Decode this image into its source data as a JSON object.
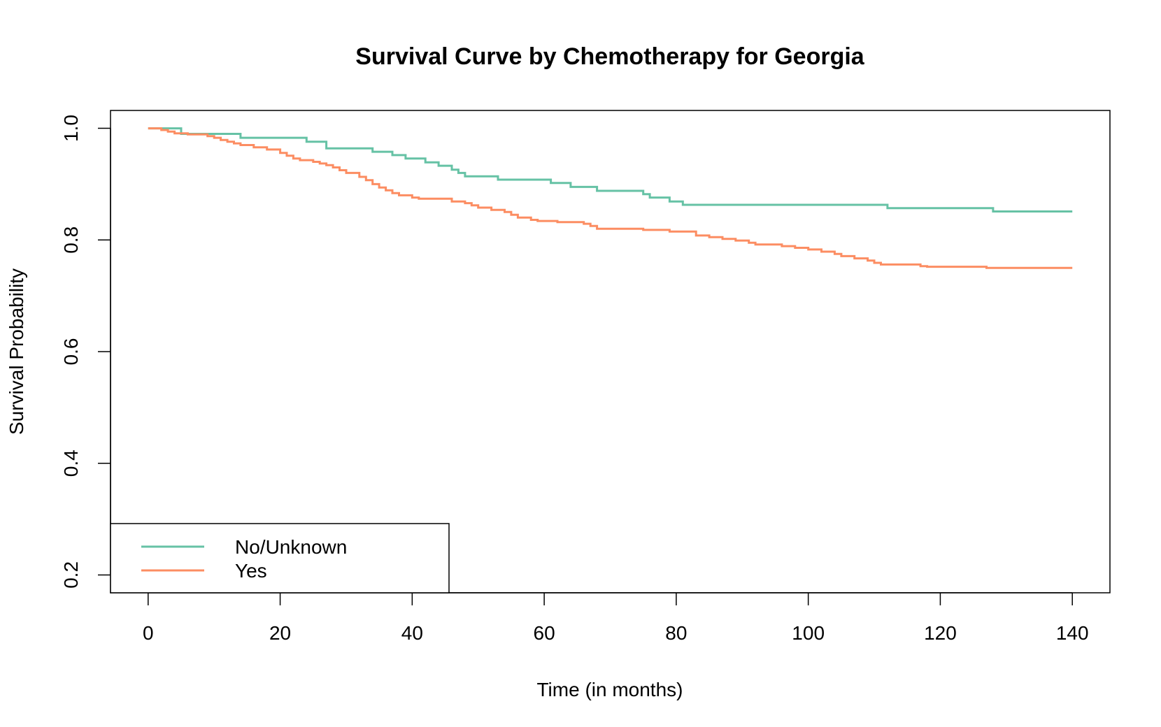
{
  "chart_data": {
    "type": "line",
    "step": true,
    "title": "Survival Curve by Chemotherapy for Georgia",
    "xlabel": "Time (in months)",
    "ylabel": "Survival Probability",
    "xlim": [
      -5.7,
      145.7
    ],
    "ylim": [
      0.168,
      1.032
    ],
    "xticks": [
      0,
      20,
      40,
      60,
      80,
      100,
      120,
      140
    ],
    "yticks": [
      0.2,
      0.4,
      0.6,
      0.8,
      1.0
    ],
    "xtick_labels": [
      "0",
      "20",
      "40",
      "60",
      "80",
      "100",
      "120",
      "140"
    ],
    "ytick_labels": [
      "0.2",
      "0.4",
      "0.6",
      "0.8",
      "1.0"
    ],
    "grid": false,
    "legend": {
      "position": "bottom-left",
      "entries": [
        "No/Unknown",
        "Yes"
      ]
    },
    "series": [
      {
        "name": "No/Unknown",
        "color": "#66c2a5",
        "points": [
          [
            0,
            1.0
          ],
          [
            5,
            0.99
          ],
          [
            14,
            0.983
          ],
          [
            24,
            0.976
          ],
          [
            27,
            0.964
          ],
          [
            34,
            0.958
          ],
          [
            37,
            0.952
          ],
          [
            39,
            0.946
          ],
          [
            42,
            0.939
          ],
          [
            44,
            0.933
          ],
          [
            46,
            0.926
          ],
          [
            47,
            0.92
          ],
          [
            48,
            0.914
          ],
          [
            53,
            0.908
          ],
          [
            61,
            0.902
          ],
          [
            64,
            0.895
          ],
          [
            68,
            0.888
          ],
          [
            75,
            0.882
          ],
          [
            76,
            0.876
          ],
          [
            79,
            0.869
          ],
          [
            81,
            0.863
          ],
          [
            112,
            0.857
          ],
          [
            128,
            0.851
          ],
          [
            140,
            0.851
          ]
        ]
      },
      {
        "name": "Yes",
        "color": "#fc8d62",
        "points": [
          [
            0,
            1.0
          ],
          [
            2,
            0.997
          ],
          [
            3,
            0.994
          ],
          [
            4,
            0.991
          ],
          [
            6,
            0.989
          ],
          [
            9,
            0.986
          ],
          [
            10,
            0.983
          ],
          [
            11,
            0.979
          ],
          [
            12,
            0.976
          ],
          [
            13,
            0.973
          ],
          [
            14,
            0.97
          ],
          [
            16,
            0.966
          ],
          [
            18,
            0.962
          ],
          [
            20,
            0.956
          ],
          [
            21,
            0.951
          ],
          [
            22,
            0.946
          ],
          [
            23,
            0.943
          ],
          [
            25,
            0.94
          ],
          [
            26,
            0.937
          ],
          [
            27,
            0.934
          ],
          [
            28,
            0.93
          ],
          [
            29,
            0.925
          ],
          [
            30,
            0.92
          ],
          [
            32,
            0.913
          ],
          [
            33,
            0.907
          ],
          [
            34,
            0.9
          ],
          [
            35,
            0.894
          ],
          [
            36,
            0.889
          ],
          [
            37,
            0.884
          ],
          [
            38,
            0.88
          ],
          [
            40,
            0.876
          ],
          [
            41,
            0.874
          ],
          [
            46,
            0.869
          ],
          [
            48,
            0.866
          ],
          [
            49,
            0.862
          ],
          [
            50,
            0.858
          ],
          [
            52,
            0.854
          ],
          [
            54,
            0.85
          ],
          [
            55,
            0.845
          ],
          [
            56,
            0.84
          ],
          [
            58,
            0.836
          ],
          [
            59,
            0.834
          ],
          [
            62,
            0.832
          ],
          [
            66,
            0.829
          ],
          [
            67,
            0.825
          ],
          [
            68,
            0.82
          ],
          [
            75,
            0.818
          ],
          [
            79,
            0.815
          ],
          [
            83,
            0.808
          ],
          [
            85,
            0.805
          ],
          [
            87,
            0.802
          ],
          [
            89,
            0.799
          ],
          [
            91,
            0.795
          ],
          [
            92,
            0.792
          ],
          [
            96,
            0.789
          ],
          [
            98,
            0.786
          ],
          [
            100,
            0.783
          ],
          [
            102,
            0.779
          ],
          [
            104,
            0.775
          ],
          [
            105,
            0.771
          ],
          [
            107,
            0.767
          ],
          [
            109,
            0.763
          ],
          [
            110,
            0.759
          ],
          [
            111,
            0.756
          ],
          [
            117,
            0.753
          ],
          [
            118,
            0.752
          ],
          [
            127,
            0.75
          ],
          [
            140,
            0.75
          ]
        ]
      }
    ]
  }
}
